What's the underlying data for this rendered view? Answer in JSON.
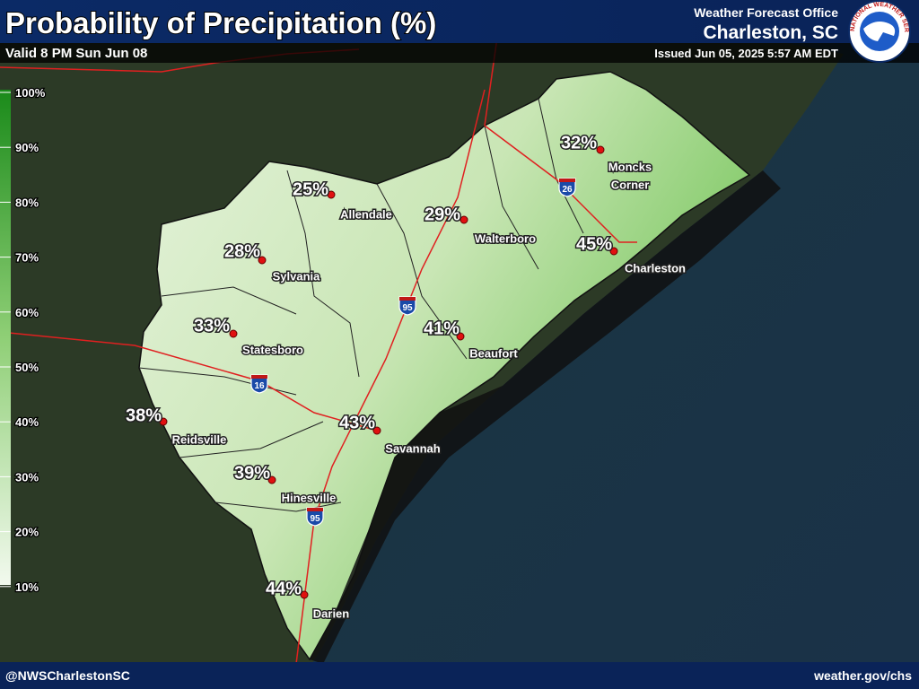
{
  "header": {
    "title": "Probability of Precipitation (%)",
    "valid": "Valid 8 PM Sun Jun 08",
    "office_line1": "Weather Forecast Office",
    "office_line2": "Charleston, SC",
    "issued": "Issued Jun 05, 2025 5:57 AM EDT",
    "logo_text": "NATIONAL WEATHER SERVICE"
  },
  "legend": {
    "ticks": [
      "100%",
      "90%",
      "80%",
      "70%",
      "60%",
      "50%",
      "40%",
      "30%",
      "20%",
      "10%"
    ]
  },
  "cities": [
    {
      "name": [
        "Moncks",
        "Corner"
      ],
      "pop": "32%"
    },
    {
      "name": [
        "Allendale"
      ],
      "pop": "25%"
    },
    {
      "name": [
        "Walterboro"
      ],
      "pop": "29%"
    },
    {
      "name": [
        "Charleston"
      ],
      "pop": "45%"
    },
    {
      "name": [
        "Sylvania"
      ],
      "pop": "28%"
    },
    {
      "name": [
        "Statesboro"
      ],
      "pop": "33%"
    },
    {
      "name": [
        "Beaufort"
      ],
      "pop": "41%"
    },
    {
      "name": [
        "Reidsville"
      ],
      "pop": "38%"
    },
    {
      "name": [
        "Savannah"
      ],
      "pop": "43%"
    },
    {
      "name": [
        "Hinesville"
      ],
      "pop": "39%"
    },
    {
      "name": [
        "Darien"
      ],
      "pop": "44%"
    }
  ],
  "highways": [
    "26",
    "95",
    "16",
    "95"
  ],
  "footer": {
    "left": "@NWSCharlestonSC",
    "right": "weather.gov/chs"
  }
}
